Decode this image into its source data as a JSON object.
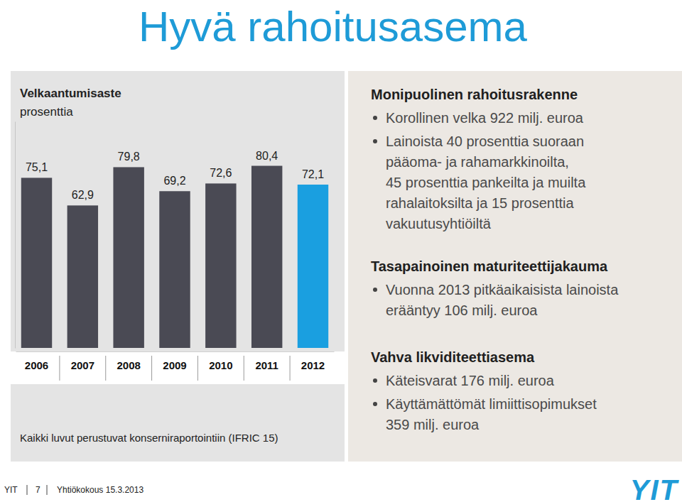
{
  "title": "Hyvä rahoitusasema",
  "chart_data": {
    "type": "bar",
    "title": "Velkaantumisaste",
    "subtitle": "prosenttia",
    "categories": [
      "2006",
      "2007",
      "2008",
      "2009",
      "2010",
      "2011",
      "2012"
    ],
    "values": [
      75.1,
      62.9,
      79.8,
      69.2,
      72.6,
      80.4,
      72.1
    ],
    "value_labels": [
      "75,1",
      "62,9",
      "79,8",
      "69,2",
      "72,6",
      "80,4",
      "72,1"
    ],
    "colors": [
      "#4a4a54",
      "#4a4a54",
      "#4a4a54",
      "#4a4a54",
      "#4a4a54",
      "#4a4a54",
      "#1a9fe0"
    ],
    "ylim": [
      0,
      100
    ],
    "data_labels": true,
    "tick_labels": "x",
    "annotation": "Kaikki luvut perustuvat konserniraportointiin (IFRIC 15)"
  },
  "sections": [
    {
      "heading": "Monipuolinen rahoitusrakenne",
      "bullets": [
        [
          "Korollinen velka 922 milj. euroa"
        ],
        [
          "Lainoista 40 prosenttia suoraan",
          "pääoma- ja rahamarkkinoilta,",
          "45 prosenttia pankeilta ja muilta",
          "rahalaitoksilta ja 15 prosenttia",
          "vakuutusyhtiöiltä"
        ]
      ]
    },
    {
      "heading": "Tasapainoinen maturiteettijakauma",
      "bullets": [
        [
          "Vuonna 2013 pitkäaikaisista lainoista",
          "erääntyy 106 milj. euroa"
        ]
      ]
    },
    {
      "heading": "Vahva likviditeettiasema",
      "bullets": [
        [
          "Käteisvarat 176 milj. euroa"
        ],
        [
          "Käyttämättömät limiittisopimukset",
          "359 milj. euroa"
        ]
      ]
    }
  ],
  "footer": [
    "YIT",
    "7",
    "Yhtiökokous 15.3.2013"
  ],
  "logo": "YIT"
}
